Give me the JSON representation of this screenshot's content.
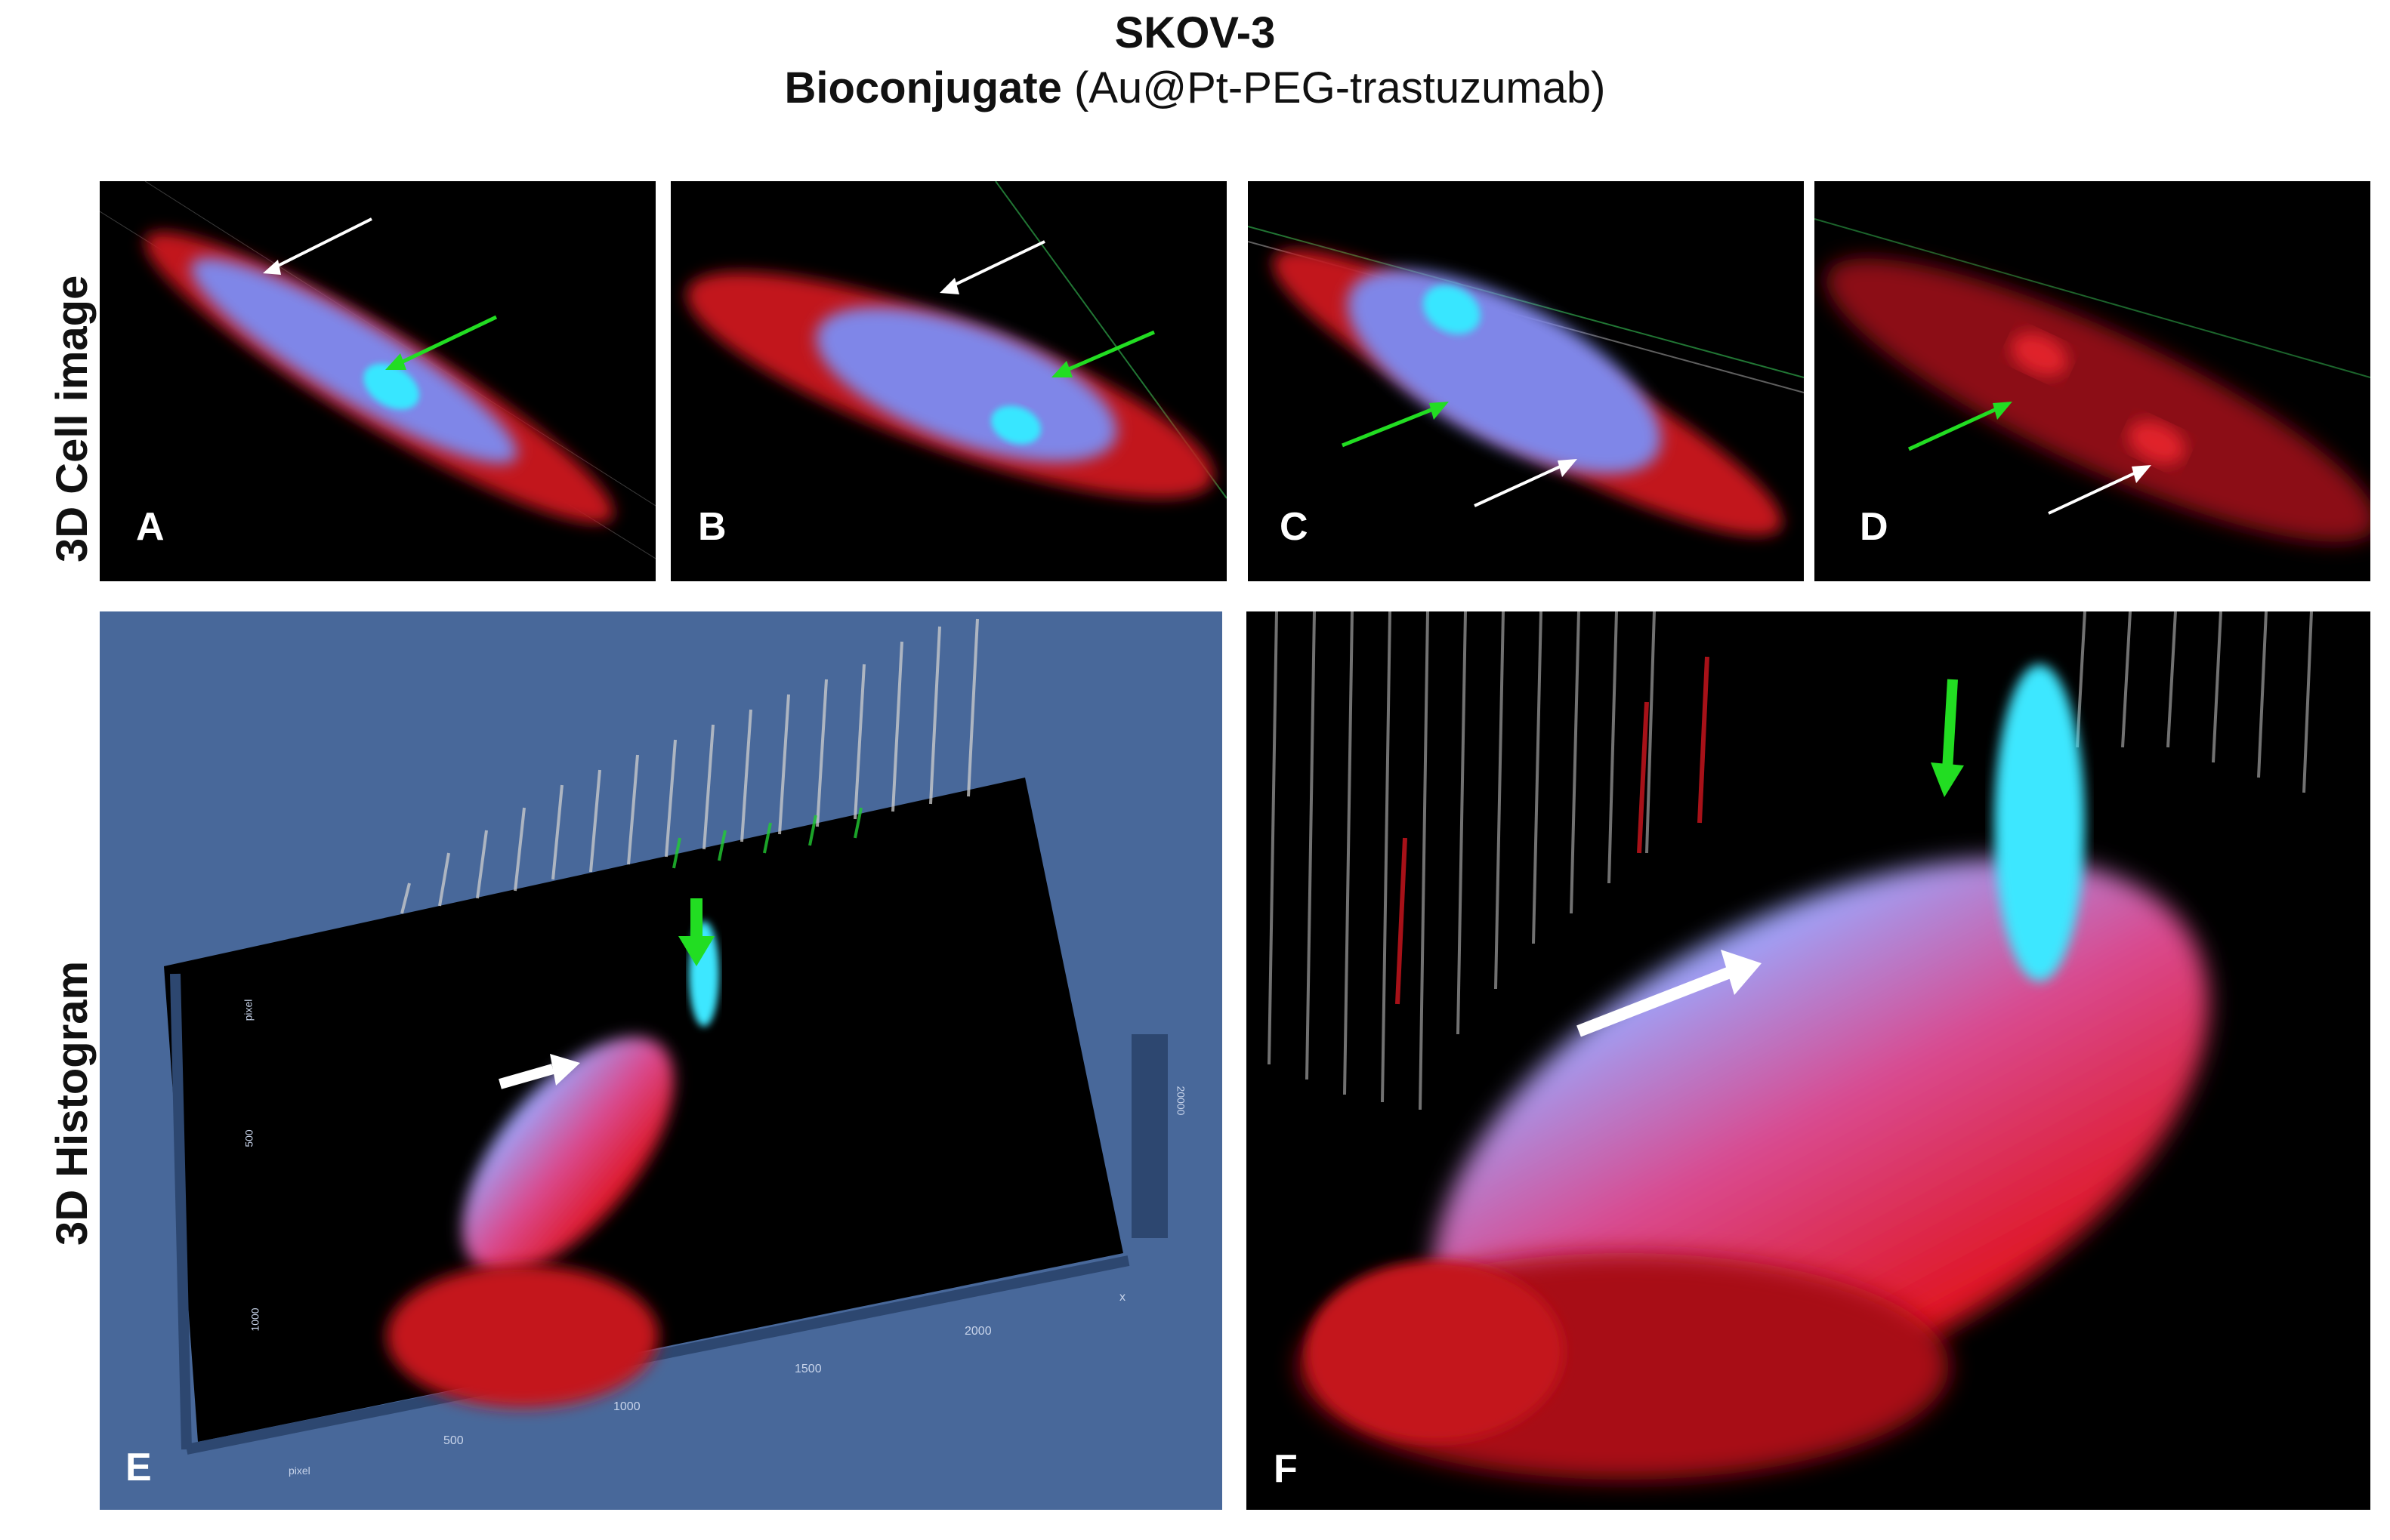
{
  "title": {
    "line1": "SKOV-3",
    "line2_bold": "Bioconjugate",
    "line2_normal": "(Au@Pt-PEG-trastuzumab)"
  },
  "row_labels": {
    "top": "3D Cell image",
    "bottom": "3D Histogram"
  },
  "panels": {
    "a": "A",
    "b": "B",
    "c": "C",
    "d": "D",
    "e": "E",
    "f": "F"
  },
  "histogram_axes": {
    "x_ticks": [
      "500",
      "1000",
      "1500",
      "2000"
    ],
    "x_end": "x",
    "x_unit": "pixel",
    "y_ticks": [
      "500",
      "1000"
    ],
    "y_unit": "pixel",
    "z_tick": "20000"
  },
  "colors": {
    "cytoplasm": "#e0131c",
    "nucleus": "#6f8ff0",
    "nucleolus": "#39e5ff",
    "arrow_green": "#22dd22",
    "arrow_white": "#ffffff",
    "panel_e_background": "#48689a"
  }
}
